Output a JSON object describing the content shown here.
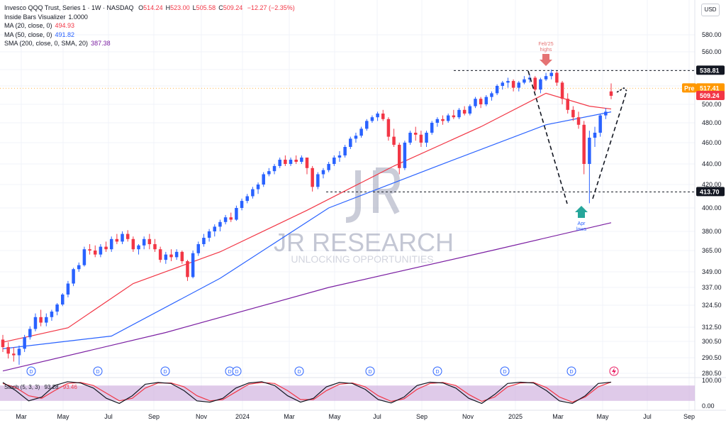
{
  "header": {
    "symbol_line": "Invesco QQQ Trust, Series 1 · 1W · NASDAQ",
    "ohlc": [
      {
        "label": "O",
        "value": "514.24"
      },
      {
        "label": "H",
        "value": "523.00"
      },
      {
        "label": "L",
        "value": "505.58"
      },
      {
        "label": "C",
        "value": "509.24"
      }
    ],
    "change": "−12.27 (−2.35%)",
    "currency": "USD"
  },
  "indicators": [
    {
      "label": "Inside Bars Visualizer",
      "value": "1.0000",
      "color": "#131722"
    },
    {
      "label": "MA (20, close, 0)",
      "value": "494.93",
      "color": "#f23645"
    },
    {
      "label": "MA (50, close, 0)",
      "value": "491.82",
      "color": "#2962ff"
    },
    {
      "label": "SMA (200, close, 0, SMA, 20)",
      "value": "387.38",
      "color": "#7b1fa2"
    }
  ],
  "stoch": {
    "label": "Stoch (5, 3, 3)",
    "k": "93.28",
    "d": "93.46",
    "k_color": "#131722",
    "d_color": "#f23645",
    "axis": [
      "100.00",
      "0.00"
    ]
  },
  "watermark": {
    "title": "JR RESEARCH",
    "tagline": "UNLOCKING OPPORTUNITIES"
  },
  "annotations": {
    "top": {
      "line1": "Feb'25",
      "line2": "highs",
      "color": "#e57373"
    },
    "bottom": {
      "line1": "Apr",
      "line2": "lows",
      "color": "#26a69a"
    }
  },
  "price_tags": [
    {
      "label": "",
      "value": "538.81",
      "bg": "#131722",
      "fg": "#ffffff",
      "price": 538.81
    },
    {
      "label": "Pre",
      "value": "517.41",
      "bg": "#ff9800",
      "fg": "#ffffff",
      "price": 517.41
    },
    {
      "label": "",
      "value": "509.24",
      "bg": "#f23645",
      "fg": "#ffffff",
      "price": 509.24
    },
    {
      "label": "",
      "value": "413.70",
      "bg": "#131722",
      "fg": "#ffffff",
      "price": 413.7
    }
  ],
  "dividend_marker": "D",
  "chart_data": {
    "type": "candlestick",
    "y_ticks": [
      280.5,
      290.5,
      300.5,
      312.5,
      324.5,
      337,
      349,
      365,
      380,
      400,
      420,
      440,
      460,
      480,
      500,
      520,
      540,
      560,
      580
    ],
    "y_tick_labels": [
      "280.50",
      "290.50",
      "300.50",
      "312.50",
      "324.50",
      "337.00",
      "349.00",
      "365.00",
      "380.00",
      "400.00",
      "420.00",
      "440.00",
      "460.00",
      "480.00",
      "500.00",
      "520.00",
      "540.00",
      "560.00",
      "580.00"
    ],
    "x_labels": [
      "Mar",
      "May",
      "Jul",
      "Sep",
      "Nov",
      "2024",
      "Mar",
      "May",
      "Jul",
      "Sep",
      "Nov",
      "2025",
      "Mar",
      "May",
      "Jul",
      "Sep"
    ],
    "candles": [
      [
        302,
        306,
        294,
        297
      ],
      [
        297,
        300,
        290,
        293
      ],
      [
        293,
        297,
        288,
        292
      ],
      [
        292,
        298,
        286,
        296
      ],
      [
        296,
        306,
        294,
        304
      ],
      [
        304,
        313,
        302,
        311
      ],
      [
        311,
        320,
        309,
        318
      ],
      [
        318,
        322,
        313,
        315
      ],
      [
        315,
        320,
        313,
        318
      ],
      [
        318,
        322,
        316,
        321
      ],
      [
        321,
        326,
        319,
        325
      ],
      [
        325,
        333,
        324,
        332
      ],
      [
        332,
        342,
        330,
        340
      ],
      [
        340,
        352,
        338,
        351
      ],
      [
        351,
        356,
        349,
        354
      ],
      [
        354,
        368,
        353,
        366
      ],
      [
        366,
        370,
        362,
        365
      ],
      [
        365,
        369,
        360,
        362
      ],
      [
        362,
        370,
        360,
        368
      ],
      [
        368,
        372,
        364,
        366
      ],
      [
        366,
        376,
        364,
        374
      ],
      [
        374,
        378,
        370,
        372
      ],
      [
        372,
        380,
        370,
        378
      ],
      [
        378,
        381,
        372,
        374
      ],
      [
        374,
        376,
        364,
        366
      ],
      [
        366,
        370,
        362,
        369
      ],
      [
        369,
        376,
        366,
        374
      ],
      [
        374,
        378,
        366,
        370
      ],
      [
        370,
        374,
        364,
        366
      ],
      [
        366,
        368,
        356,
        358
      ],
      [
        358,
        364,
        355,
        362
      ],
      [
        362,
        366,
        357,
        360
      ],
      [
        360,
        366,
        358,
        364
      ],
      [
        364,
        365,
        355,
        357
      ],
      [
        357,
        358,
        342,
        345
      ],
      [
        345,
        365,
        344,
        363
      ],
      [
        363,
        372,
        361,
        370
      ],
      [
        370,
        378,
        368,
        375
      ],
      [
        375,
        382,
        372,
        380
      ],
      [
        380,
        386,
        376,
        384
      ],
      [
        384,
        390,
        380,
        388
      ],
      [
        388,
        394,
        386,
        392
      ],
      [
        392,
        396,
        388,
        390
      ],
      [
        390,
        402,
        389,
        400
      ],
      [
        400,
        408,
        398,
        406
      ],
      [
        406,
        412,
        404,
        410
      ],
      [
        410,
        418,
        408,
        416
      ],
      [
        416,
        422,
        412,
        420
      ],
      [
        420,
        432,
        418,
        430
      ],
      [
        430,
        436,
        428,
        433
      ],
      [
        433,
        440,
        430,
        438
      ],
      [
        438,
        446,
        436,
        444
      ],
      [
        444,
        448,
        438,
        440
      ],
      [
        440,
        446,
        438,
        444
      ],
      [
        444,
        448,
        440,
        442
      ],
      [
        442,
        448,
        440,
        446
      ],
      [
        446,
        446,
        430,
        436
      ],
      [
        436,
        438,
        414,
        418
      ],
      [
        418,
        432,
        416,
        430
      ],
      [
        430,
        436,
        426,
        434
      ],
      [
        434,
        442,
        432,
        440
      ],
      [
        440,
        448,
        438,
        446
      ],
      [
        446,
        452,
        442,
        448
      ],
      [
        448,
        458,
        446,
        456
      ],
      [
        456,
        466,
        454,
        464
      ],
      [
        464,
        470,
        460,
        467
      ],
      [
        467,
        476,
        465,
        474
      ],
      [
        474,
        484,
        472,
        482
      ],
      [
        482,
        488,
        480,
        486
      ],
      [
        486,
        492,
        482,
        490
      ],
      [
        490,
        494,
        482,
        484
      ],
      [
        484,
        486,
        462,
        466
      ],
      [
        466,
        474,
        456,
        458
      ],
      [
        458,
        460,
        430,
        436
      ],
      [
        436,
        462,
        434,
        460
      ],
      [
        460,
        472,
        458,
        470
      ],
      [
        470,
        476,
        462,
        468
      ],
      [
        468,
        472,
        456,
        460
      ],
      [
        460,
        472,
        456,
        470
      ],
      [
        470,
        482,
        468,
        480
      ],
      [
        480,
        486,
        476,
        484
      ],
      [
        484,
        488,
        478,
        482
      ],
      [
        482,
        490,
        480,
        488
      ],
      [
        488,
        494,
        484,
        486
      ],
      [
        486,
        496,
        484,
        494
      ],
      [
        494,
        498,
        488,
        490
      ],
      [
        490,
        500,
        488,
        498
      ],
      [
        498,
        508,
        496,
        506
      ],
      [
        506,
        508,
        496,
        500
      ],
      [
        500,
        510,
        498,
        508
      ],
      [
        508,
        514,
        504,
        512
      ],
      [
        512,
        522,
        510,
        520
      ],
      [
        520,
        526,
        516,
        524
      ],
      [
        524,
        530,
        518,
        526
      ],
      [
        526,
        528,
        514,
        518
      ],
      [
        518,
        526,
        514,
        524
      ],
      [
        524,
        532,
        522,
        528
      ],
      [
        528,
        534,
        524,
        530
      ],
      [
        530,
        532,
        514,
        516
      ],
      [
        516,
        530,
        512,
        528
      ],
      [
        528,
        536,
        526,
        532
      ],
      [
        532,
        540,
        528,
        536
      ],
      [
        536,
        538,
        520,
        524
      ],
      [
        524,
        526,
        500,
        506
      ],
      [
        506,
        512,
        490,
        494
      ],
      [
        494,
        498,
        482,
        486
      ],
      [
        486,
        492,
        474,
        478
      ],
      [
        478,
        482,
        430,
        440
      ],
      [
        440,
        472,
        404,
        465
      ],
      [
        465,
        476,
        456,
        470
      ],
      [
        470,
        490,
        466,
        488
      ],
      [
        488,
        496,
        484,
        492
      ],
      [
        514,
        523,
        505.58,
        509.24
      ]
    ],
    "series": [
      {
        "name": "MA (20, close, 0)",
        "color": "#f23645",
        "x": [
          0,
          12,
          24,
          40,
          56,
          72,
          88,
          100,
          108,
          112
        ],
        "values": [
          300,
          312,
          340,
          364,
          398,
          438,
          476,
          512,
          498,
          494.93
        ]
      },
      {
        "name": "MA (50, close, 0)",
        "color": "#2962ff",
        "x": [
          0,
          20,
          40,
          60,
          80,
          100,
          112
        ],
        "values": [
          296,
          305,
          344,
          400,
          438,
          478,
          491.82
        ]
      },
      {
        "name": "SMA (200, close, 0, SMA, 20)",
        "color": "#7b1fa2",
        "x": [
          0,
          30,
          60,
          90,
          112
        ],
        "values": [
          282,
          308,
          337,
          365,
          387.38
        ]
      }
    ],
    "stoch_k": [
      92,
      60,
      20,
      35,
      80,
      95,
      90,
      70,
      30,
      10,
      40,
      85,
      92,
      88,
      60,
      20,
      15,
      30,
      70,
      90,
      95,
      80,
      40,
      15,
      30,
      75,
      92,
      88,
      65,
      25,
      12,
      35,
      80,
      93,
      90,
      70,
      30,
      10,
      45,
      88,
      93,
      90,
      60,
      20,
      10,
      40,
      88,
      93.28
    ],
    "stoch_d": [
      88,
      72,
      40,
      30,
      60,
      88,
      92,
      80,
      50,
      20,
      30,
      70,
      90,
      90,
      75,
      40,
      20,
      25,
      55,
      85,
      92,
      88,
      60,
      25,
      25,
      60,
      85,
      90,
      75,
      40,
      18,
      28,
      65,
      88,
      92,
      80,
      45,
      18,
      35,
      75,
      90,
      92,
      72,
      35,
      15,
      35,
      75,
      93.46
    ]
  }
}
